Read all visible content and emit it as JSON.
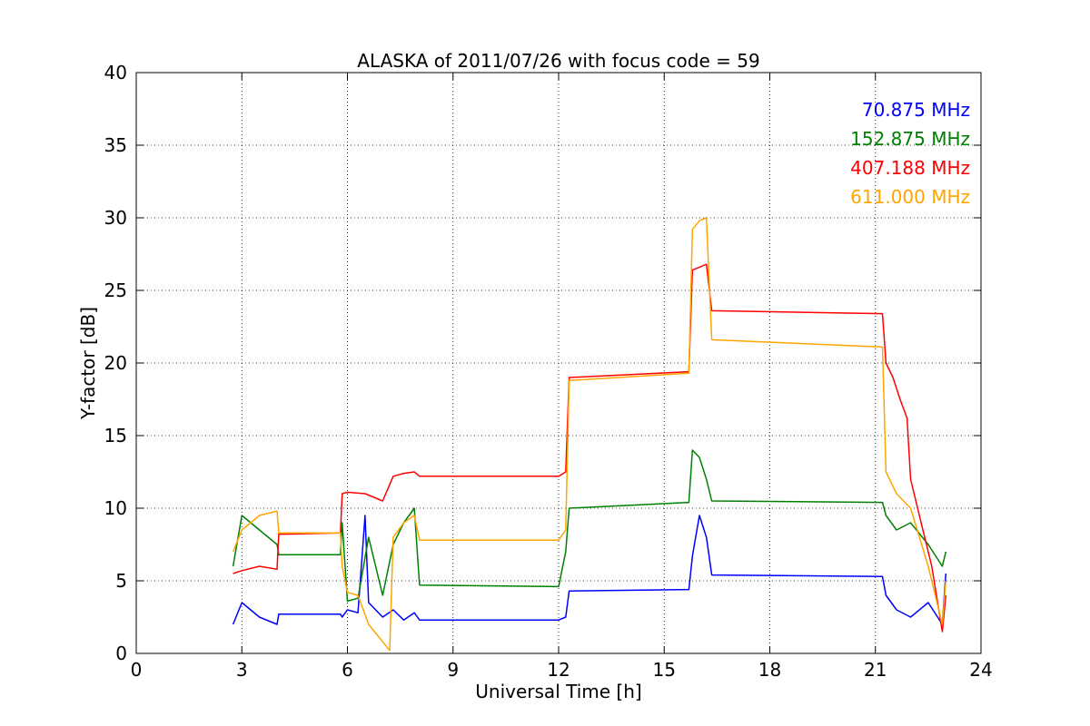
{
  "chart_data": {
    "type": "line",
    "title": "ALASKA of 2011/07/26 with focus code = 59",
    "xlabel": "Universal Time [h]",
    "ylabel": "Y-factor [dB]",
    "xlim": [
      0,
      24
    ],
    "ylim": [
      0,
      40
    ],
    "xticks": [
      0,
      3,
      6,
      9,
      12,
      15,
      18,
      21,
      24
    ],
    "yticks": [
      0,
      5,
      10,
      15,
      20,
      25,
      30,
      35,
      40
    ],
    "grid": true,
    "legend_placement": "top-right",
    "series": [
      {
        "name": "70.875 MHz",
        "color": "#0000ff",
        "x": [
          2.75,
          3.0,
          3.5,
          4.0,
          4.05,
          5.8,
          5.85,
          6.0,
          6.3,
          6.5,
          6.6,
          7.0,
          7.3,
          7.6,
          7.9,
          8.05,
          12.0,
          12.2,
          12.3,
          15.7,
          15.8,
          16.0,
          16.2,
          16.35,
          21.2,
          21.3,
          21.6,
          22.0,
          22.5,
          22.9,
          23.0
        ],
        "y": [
          2.0,
          3.5,
          2.5,
          2.0,
          2.7,
          2.7,
          2.5,
          3.0,
          2.8,
          9.5,
          3.5,
          2.5,
          3.0,
          2.3,
          2.8,
          2.3,
          2.3,
          2.5,
          4.3,
          4.4,
          6.7,
          9.5,
          8.0,
          5.4,
          5.3,
          4.0,
          3.0,
          2.5,
          3.5,
          2.0,
          5.5
        ]
      },
      {
        "name": "152.875 MHz",
        "color": "#008000",
        "x": [
          2.75,
          3.0,
          3.5,
          4.0,
          4.05,
          5.8,
          5.85,
          6.0,
          6.3,
          6.6,
          7.0,
          7.3,
          7.6,
          7.9,
          8.05,
          12.0,
          12.2,
          12.3,
          15.7,
          15.8,
          16.0,
          16.2,
          16.35,
          21.2,
          21.3,
          21.6,
          22.0,
          22.5,
          22.9,
          23.0
        ],
        "y": [
          6.0,
          9.5,
          8.5,
          7.5,
          6.8,
          6.8,
          9.0,
          3.6,
          3.8,
          8.0,
          4.0,
          7.5,
          9.0,
          10.0,
          4.7,
          4.6,
          7.0,
          10.0,
          10.4,
          14.0,
          13.5,
          12.0,
          10.5,
          10.4,
          9.5,
          8.5,
          9.0,
          7.5,
          6.0,
          7.0
        ]
      },
      {
        "name": "407.188 MHz",
        "color": "#ff0000",
        "x": [
          2.75,
          3.0,
          3.5,
          4.0,
          4.05,
          5.8,
          5.85,
          6.0,
          6.5,
          7.0,
          7.3,
          7.6,
          7.9,
          8.05,
          12.0,
          12.2,
          12.3,
          15.7,
          15.8,
          16.0,
          16.2,
          16.35,
          21.2,
          21.3,
          21.5,
          21.7,
          21.9,
          22.0,
          22.3,
          22.6,
          22.9,
          23.0
        ],
        "y": [
          5.5,
          5.7,
          6.0,
          5.8,
          8.2,
          8.3,
          11.0,
          11.1,
          11.0,
          10.5,
          12.2,
          12.4,
          12.5,
          12.2,
          12.2,
          12.5,
          19.0,
          19.4,
          26.4,
          26.6,
          26.8,
          23.6,
          23.4,
          20.0,
          19.0,
          17.5,
          16.2,
          12.0,
          9.0,
          6.0,
          1.5,
          4.0
        ]
      },
      {
        "name": "611.000 MHz",
        "color": "#ffa500",
        "x": [
          2.75,
          3.0,
          3.5,
          4.0,
          4.05,
          5.8,
          5.85,
          6.0,
          6.3,
          6.6,
          7.0,
          7.2,
          7.3,
          7.6,
          7.9,
          8.05,
          12.0,
          12.2,
          12.3,
          15.7,
          15.8,
          16.0,
          16.2,
          16.35,
          21.2,
          21.3,
          21.6,
          22.0,
          22.5,
          22.9,
          23.0
        ],
        "y": [
          7.0,
          8.5,
          9.5,
          9.8,
          8.3,
          8.3,
          6.0,
          4.2,
          4.0,
          2.0,
          0.8,
          0.2,
          8.0,
          9.0,
          9.5,
          7.8,
          7.8,
          8.5,
          18.8,
          19.3,
          29.2,
          29.8,
          30.0,
          21.6,
          21.1,
          12.5,
          11.0,
          10.0,
          6.0,
          2.0,
          5.0
        ]
      }
    ]
  }
}
